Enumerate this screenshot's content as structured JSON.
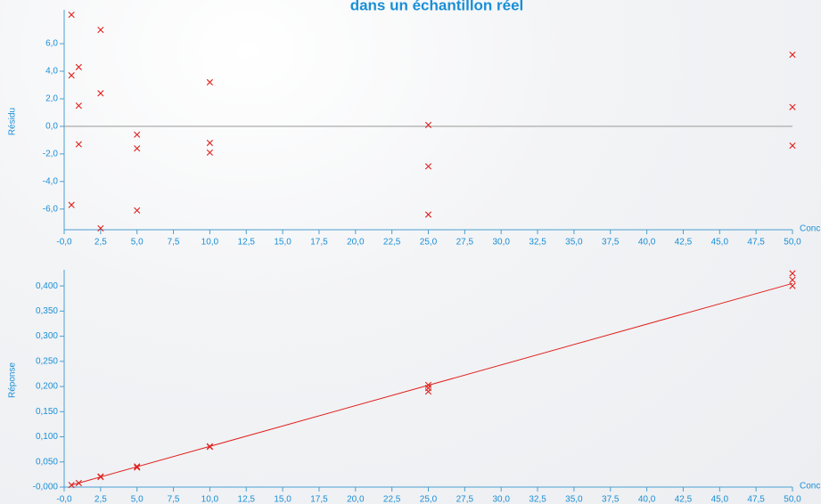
{
  "chart_data": [
    {
      "type": "scatter",
      "title": "dans un échantillon réel",
      "x_label": "Conc",
      "y_label": "Résidu",
      "zero_line": true,
      "xlim": [
        0,
        50
      ],
      "xticks": [
        {
          "value": 0,
          "label": "-0,0"
        },
        {
          "value": 2.5,
          "label": "2,5"
        },
        {
          "value": 5,
          "label": "5,0"
        },
        {
          "value": 7.5,
          "label": "7,5"
        },
        {
          "value": 10,
          "label": "10,0"
        },
        {
          "value": 12.5,
          "label": "12,5"
        },
        {
          "value": 15,
          "label": "15,0"
        },
        {
          "value": 17.5,
          "label": "17,5"
        },
        {
          "value": 20,
          "label": "20,0"
        },
        {
          "value": 22.5,
          "label": "22,5"
        },
        {
          "value": 25,
          "label": "25,0"
        },
        {
          "value": 27.5,
          "label": "27,5"
        },
        {
          "value": 30,
          "label": "30,0"
        },
        {
          "value": 32.5,
          "label": "32,5"
        },
        {
          "value": 35,
          "label": "35,0"
        },
        {
          "value": 37.5,
          "label": "37,5"
        },
        {
          "value": 40,
          "label": "40,0"
        },
        {
          "value": 42.5,
          "label": "42,5"
        },
        {
          "value": 45,
          "label": "45,0"
        },
        {
          "value": 47.5,
          "label": "47,5"
        },
        {
          "value": 50,
          "label": "50,0"
        }
      ],
      "ylim": [
        -7.5,
        8.2
      ],
      "yticks": [
        {
          "value": -6,
          "label": "-6,0"
        },
        {
          "value": -4,
          "label": "-4,0"
        },
        {
          "value": -2,
          "label": "-2,0"
        },
        {
          "value": 0,
          "label": "0,0"
        },
        {
          "value": 2,
          "label": "2,0"
        },
        {
          "value": 4,
          "label": "4,0"
        },
        {
          "value": 6,
          "label": "6,0"
        }
      ],
      "series": [
        {
          "color": "#e0201c",
          "marker": "x",
          "x": [
            0.5,
            0.5,
            0.5,
            1,
            1,
            1,
            2.5,
            2.5,
            2.5,
            5,
            5,
            5,
            10,
            10,
            10,
            25,
            25,
            25,
            50,
            50,
            50
          ],
          "values": [
            8.1,
            3.7,
            -5.7,
            4.3,
            1.5,
            -1.3,
            7.0,
            2.4,
            -7.4,
            -0.6,
            -1.6,
            -6.1,
            3.2,
            -1.2,
            -1.9,
            0.1,
            -2.9,
            -6.4,
            5.2,
            1.4,
            -1.4
          ]
        }
      ]
    },
    {
      "type": "scatter",
      "x_label": "Conc",
      "y_label": "Réponse",
      "xlim": [
        0,
        50
      ],
      "xticks": [
        {
          "value": 0,
          "label": "-0,0"
        },
        {
          "value": 2.5,
          "label": "2,5"
        },
        {
          "value": 5,
          "label": "5,0"
        },
        {
          "value": 7.5,
          "label": "7,5"
        },
        {
          "value": 10,
          "label": "10,0"
        },
        {
          "value": 12.5,
          "label": "12,5"
        },
        {
          "value": 15,
          "label": "15,0"
        },
        {
          "value": 17.5,
          "label": "17,5"
        },
        {
          "value": 20,
          "label": "20,0"
        },
        {
          "value": 22.5,
          "label": "22,5"
        },
        {
          "value": 25,
          "label": "25,0"
        },
        {
          "value": 27.5,
          "label": "27,5"
        },
        {
          "value": 30,
          "label": "30,0"
        },
        {
          "value": 32.5,
          "label": "32,5"
        },
        {
          "value": 35,
          "label": "35,0"
        },
        {
          "value": 37.5,
          "label": "37,5"
        },
        {
          "value": 40,
          "label": "40,0"
        },
        {
          "value": 42.5,
          "label": "42,5"
        },
        {
          "value": 45,
          "label": "45,0"
        },
        {
          "value": 47.5,
          "label": "47,5"
        },
        {
          "value": 50,
          "label": "50,0"
        }
      ],
      "ylim": [
        0,
        0.425
      ],
      "yticks": [
        {
          "value": 0,
          "label": "-0,000"
        },
        {
          "value": 0.05,
          "label": "0,050"
        },
        {
          "value": 0.1,
          "label": "0,100"
        },
        {
          "value": 0.15,
          "label": "0,150"
        },
        {
          "value": 0.2,
          "label": "0,200"
        },
        {
          "value": 0.25,
          "label": "0,250"
        },
        {
          "value": 0.3,
          "label": "0,300"
        },
        {
          "value": 0.35,
          "label": "0,350"
        },
        {
          "value": 0.4,
          "label": "0,400"
        }
      ],
      "series": [
        {
          "color": "#e0201c",
          "marker": "x",
          "x": [
            0.5,
            1,
            2.5,
            2.5,
            5,
            5,
            10,
            10,
            25,
            25,
            25,
            50,
            50,
            50
          ],
          "values": [
            0.004,
            0.008,
            0.02,
            0.021,
            0.041,
            0.039,
            0.081,
            0.08,
            0.203,
            0.197,
            0.19,
            0.425,
            0.412,
            0.4
          ]
        },
        {
          "color": "#e0201c",
          "marker": "line",
          "x": [
            0.5,
            50
          ],
          "values": [
            0.004,
            0.405
          ]
        }
      ]
    }
  ]
}
